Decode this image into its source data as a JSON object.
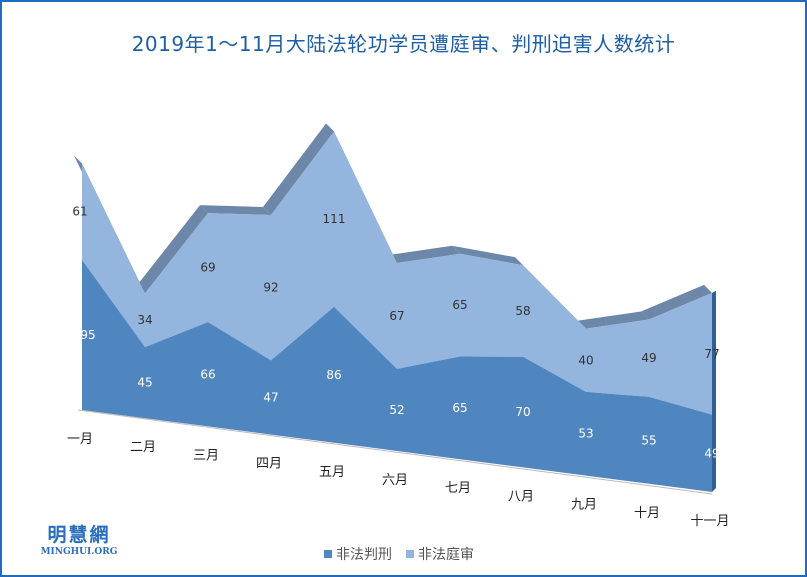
{
  "chart_data": {
    "type": "area",
    "subtype": "3d-stacked-area",
    "title": "2019年1～11月大陆法轮功学员遭庭审、判刑迫害人数统计",
    "categories": [
      "一月",
      "二月",
      "三月",
      "四月",
      "五月",
      "六月",
      "七月",
      "八月",
      "九月",
      "十月",
      "十一月"
    ],
    "series": [
      {
        "name": "非法判刑",
        "color": "#4f86c0",
        "values": [
          95,
          45,
          66,
          47,
          86,
          52,
          65,
          70,
          53,
          55,
          49
        ]
      },
      {
        "name": "非法庭审",
        "color": "#94b5de",
        "values": [
          61,
          34,
          69,
          92,
          111,
          67,
          65,
          58,
          40,
          49,
          77
        ]
      }
    ],
    "legend_position": "bottom",
    "grid": false
  },
  "logo": {
    "cn": "明慧網",
    "en": "MINGHUI.ORG"
  }
}
